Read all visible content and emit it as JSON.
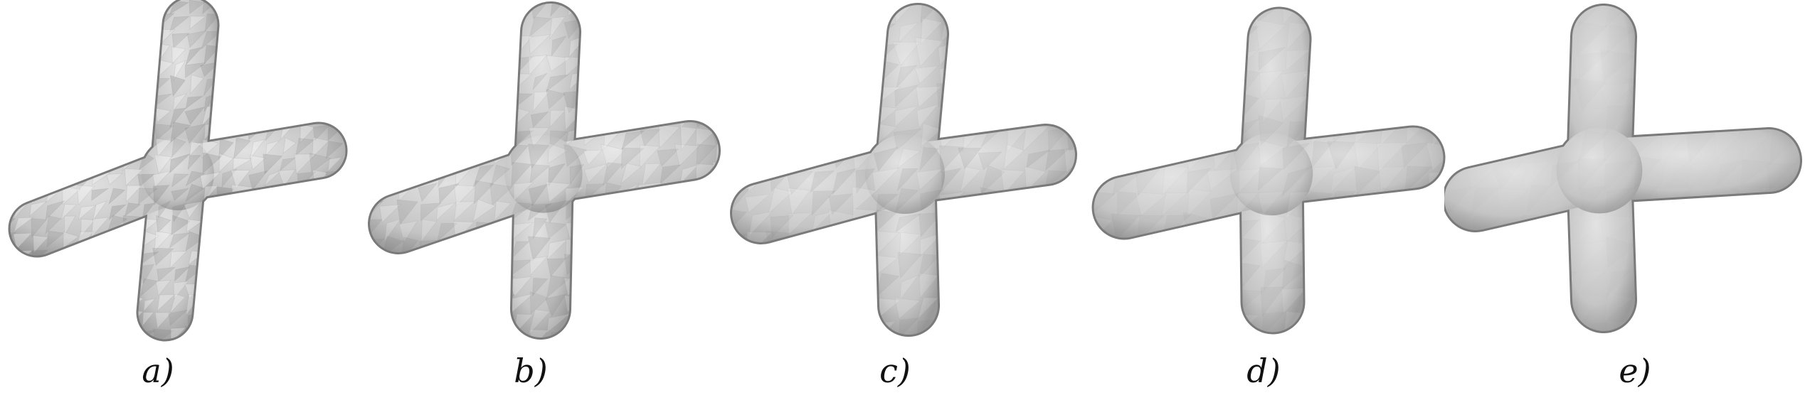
{
  "figure": {
    "panels": [
      {
        "label": "a)",
        "smoothness": 0.0,
        "facet_opacity": 0.55
      },
      {
        "label": "b)",
        "smoothness": 0.25,
        "facet_opacity": 0.42
      },
      {
        "label": "c)",
        "smoothness": 0.5,
        "facet_opacity": 0.3
      },
      {
        "label": "d)",
        "smoothness": 0.75,
        "facet_opacity": 0.18
      },
      {
        "label": "e)",
        "smoothness": 1.0,
        "facet_opacity": 0.06
      }
    ],
    "colors": {
      "mesh_fill": "#c4c4c4",
      "mesh_highlight": "#e2e2e2",
      "mesh_shadow": "#9a9a9a",
      "outline": "#7a7a7a",
      "background": "#ffffff"
    }
  }
}
